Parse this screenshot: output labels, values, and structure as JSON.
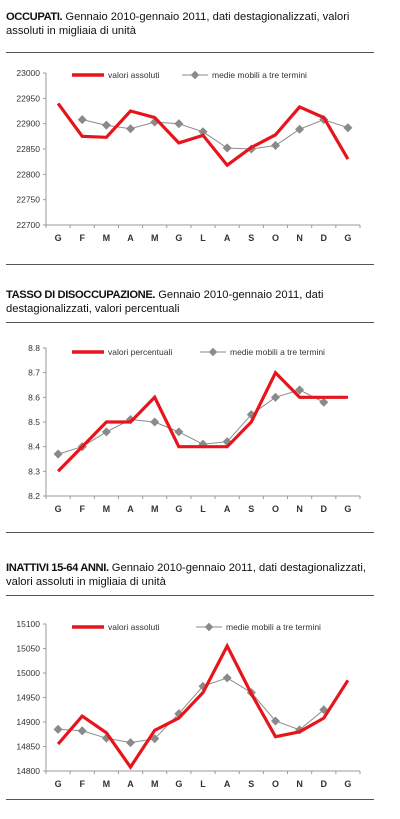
{
  "charts": [
    {
      "title_bold": "OCCUPATI.",
      "title_rest": " Gennaio 2010-gennaio 2011, dati destagionalizzati, valori assoluti in migliaia di unità",
      "chart_data": {
        "type": "line",
        "categories": [
          "G",
          "F",
          "M",
          "A",
          "M",
          "G",
          "L",
          "A",
          "S",
          "O",
          "N",
          "D",
          "G"
        ],
        "ylim": [
          22700,
          23000
        ],
        "yticks": [
          22700,
          22750,
          22800,
          22850,
          22900,
          22950,
          23000
        ],
        "grid": false,
        "legend_position": "top",
        "series": [
          {
            "name": "valori assoluti",
            "color": "#e8141c",
            "values": [
              22940,
              22875,
              22873,
              22925,
              22912,
              22862,
              22877,
              22818,
              22853,
              22878,
              22933,
              22912,
              22830
            ]
          },
          {
            "name": "medie mobili a tre termini",
            "color": "#8a8a8a",
            "values": [
              null,
              22908,
              22897,
              22890,
              22903,
              22900,
              22884,
              22852,
              22850,
              22857,
              22889,
              22908,
              22892
            ]
          }
        ]
      }
    },
    {
      "title_bold": "TASSO DI DISOCCUPAZIONE.",
      "title_rest": " Gennaio 2010-gennaio 2011, dati destagionalizzati, valori percentuali",
      "chart_data": {
        "type": "line",
        "categories": [
          "G",
          "F",
          "M",
          "A",
          "M",
          "G",
          "L",
          "A",
          "S",
          "O",
          "N",
          "D",
          "G"
        ],
        "ylim": [
          8.2,
          8.8
        ],
        "yticks": [
          8.2,
          8.3,
          8.4,
          8.5,
          8.6,
          8.7,
          8.8
        ],
        "grid": false,
        "legend_position": "top",
        "series": [
          {
            "name": "valori percentuali",
            "color": "#e8141c",
            "values": [
              8.3,
              8.4,
              8.5,
              8.5,
              8.6,
              8.4,
              8.4,
              8.4,
              8.5,
              8.7,
              8.6,
              8.6,
              8.6
            ]
          },
          {
            "name": "medie mobili a tre termini",
            "color": "#8a8a8a",
            "values": [
              8.37,
              8.4,
              8.46,
              8.51,
              8.5,
              8.46,
              8.41,
              8.42,
              8.53,
              8.6,
              8.63,
              8.58,
              null
            ]
          }
        ]
      }
    },
    {
      "title_bold": "INATTIVI 15-64 ANNI.",
      "title_rest": " Gennaio 2010-gennaio 2011, dati destagionalizzati, valori assoluti in migliaia di unità",
      "chart_data": {
        "type": "line",
        "categories": [
          "G",
          "F",
          "M",
          "A",
          "M",
          "G",
          "L",
          "A",
          "S",
          "O",
          "N",
          "D",
          "G"
        ],
        "ylim": [
          14800,
          15100
        ],
        "yticks": [
          14800,
          14850,
          14900,
          14950,
          15000,
          15050,
          15100
        ],
        "grid": false,
        "legend_position": "top",
        "series": [
          {
            "name": "valori assoluti",
            "color": "#e8141c",
            "values": [
              14855,
              14912,
              14878,
              14808,
              14883,
              14908,
              14960,
              15055,
              14958,
              14870,
              14880,
              14908,
              14985
            ]
          },
          {
            "name": "medie mobili a tre termini",
            "color": "#8a8a8a",
            "values": [
              14885,
              14882,
              14867,
              14858,
              14866,
              14917,
              14973,
              14990,
              14960,
              14902,
              14884,
              14925,
              null
            ]
          }
        ]
      }
    }
  ]
}
